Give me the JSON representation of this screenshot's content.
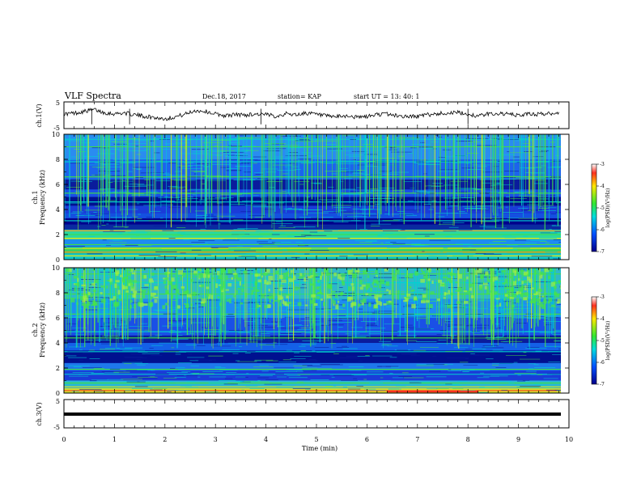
{
  "header": {
    "title": "VLF Spectra",
    "date": "Dec.18, 2017",
    "station": "station= KAP",
    "start": "start  UT  =   13: 40: 1"
  },
  "chart_data": [
    {
      "type": "line",
      "panel": "ch1-waveform",
      "ylabel": "ch.1(V)",
      "ylim": [
        -5,
        5
      ],
      "yticks": [
        "5",
        "-5"
      ],
      "xlim": [
        0,
        10
      ],
      "series": [
        {
          "x": [
            0,
            0.2,
            0.4,
            0.6,
            0.8,
            1.0,
            1.2,
            1.4,
            1.6,
            1.8,
            2.0,
            2.2,
            2.4,
            2.6,
            2.8,
            3.0,
            3.2,
            3.4,
            3.6,
            3.8,
            4.0,
            4.2,
            4.4,
            4.6,
            4.8,
            5.0,
            5.2,
            5.4,
            5.6,
            5.8,
            6.0,
            6.2,
            6.4,
            6.6,
            6.8,
            7.0,
            7.2,
            7.4,
            7.6,
            7.8,
            8.0,
            8.2,
            8.4,
            8.6,
            8.8,
            9.0,
            9.2,
            9.4,
            9.6,
            9.8
          ],
          "y": [
            0.5,
            0.8,
            1.5,
            2.2,
            1.0,
            0.6,
            0.9,
            0.2,
            -0.4,
            -0.9,
            -1.4,
            -0.6,
            0.4,
            1.8,
            1.5,
            0.5,
            -0.2,
            0.3,
            0.1,
            0.5,
            0.2,
            -0.3,
            0.6,
            0.2,
            0.9,
            0.3,
            -0.4,
            -0.6,
            -0.2,
            -0.8,
            -0.5,
            0.3,
            0.5,
            -0.2,
            -0.5,
            -0.4,
            0.2,
            0.6,
            0.9,
            1.0,
            0.4,
            -0.3,
            0.5,
            0.7,
            0.4,
            -0.1,
            0.5,
            0.4,
            0.6,
            1.2
          ]
        }
      ]
    },
    {
      "type": "heatmap",
      "panel": "ch1-spectrogram",
      "ylabel": "ch.1\nFrequency (kHz)",
      "ylim": [
        0,
        10
      ],
      "yticks": [
        "0",
        "2",
        "4",
        "6",
        "8",
        "10"
      ],
      "xlim": [
        0,
        10
      ],
      "colorbar": {
        "label": "log(PSD)(V²/Hz)",
        "range": [
          -7,
          -3
        ],
        "ticks": [
          "-3",
          "-4",
          "-5",
          "-6",
          "-7"
        ]
      }
    },
    {
      "type": "heatmap",
      "panel": "ch2-spectrogram",
      "ylabel": "ch.2\nFrequency (kHz)",
      "ylim": [
        0,
        10
      ],
      "yticks": [
        "0",
        "2",
        "4",
        "6",
        "8",
        "10"
      ],
      "xlim": [
        0,
        10
      ],
      "colorbar": {
        "label": "log(PSD)(V²/Hz)",
        "range": [
          -7,
          -3
        ],
        "ticks": [
          "-3",
          "-4",
          "-5",
          "-6",
          "-7"
        ]
      }
    },
    {
      "type": "line",
      "panel": "ch3-waveform",
      "ylabel": "ch.3(V)",
      "ylim": [
        -5,
        5
      ],
      "yticks": [
        "5",
        "-5"
      ],
      "xlim": [
        0,
        10
      ],
      "series": [
        {
          "x": [
            0,
            9.8
          ],
          "y": [
            -1.2,
            -1.2
          ]
        }
      ]
    }
  ],
  "xaxis": {
    "label": "Time  (min)",
    "ticks": [
      "0",
      "1",
      "2",
      "3",
      "4",
      "5",
      "6",
      "7",
      "8",
      "9",
      "10"
    ]
  },
  "colors": {
    "background": "#ffffff",
    "axis": "#000000",
    "spec_low": "#00008b",
    "spec_mid": "#1e64ff",
    "spec_cyan": "#00d2d2",
    "spec_green": "#46e646",
    "spec_yellow": "#ffe600",
    "spec_red": "#ff2020"
  }
}
